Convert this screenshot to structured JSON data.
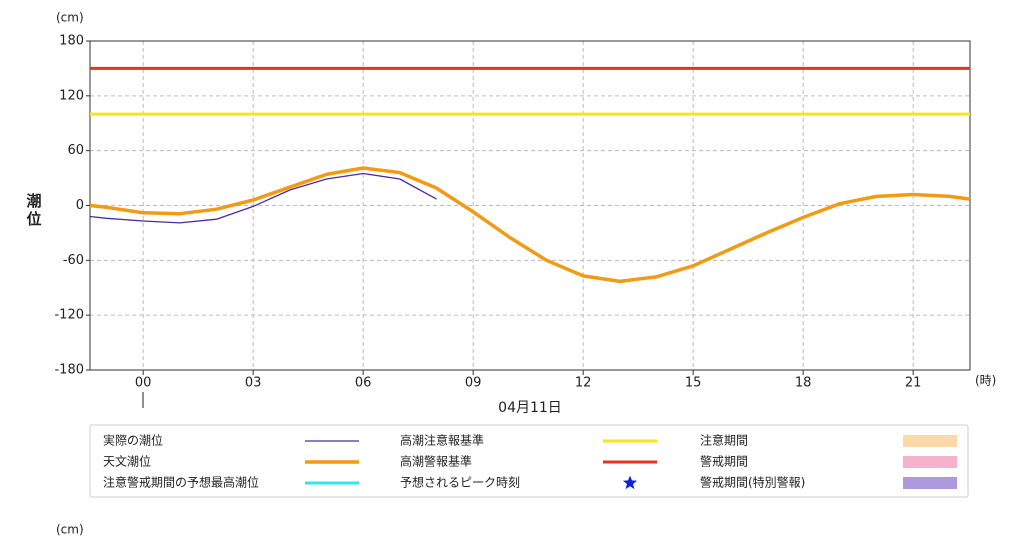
{
  "chart_data": {
    "type": "line",
    "y_unit": "(cm)",
    "ylabel": "潮位",
    "x_unit": "(時)",
    "xlabel": "04月11日",
    "xlim": [
      -1.45,
      22.55
    ],
    "ylim": [
      -180,
      180
    ],
    "xticks": [
      {
        "value": 0,
        "label": "00"
      },
      {
        "value": 3,
        "label": "03"
      },
      {
        "value": 6,
        "label": "06"
      },
      {
        "value": 9,
        "label": "09"
      },
      12,
      15,
      18,
      21
    ],
    "yticks": [
      -180,
      -120,
      -60,
      0,
      60,
      120,
      180
    ],
    "grid": true,
    "x": [
      -1.45,
      -1,
      0,
      1,
      2,
      3,
      4,
      5,
      6,
      7,
      8,
      9,
      10,
      11,
      12,
      13,
      14,
      15,
      16,
      17,
      18,
      19,
      20,
      21,
      22,
      22.55
    ],
    "series": [
      {
        "name": "実際の潮位",
        "color": "#4b2aa8",
        "width": 1.3,
        "values": [
          -12,
          -14,
          -17,
          -19,
          -15,
          -1,
          17,
          29,
          35,
          29,
          7,
          null,
          null,
          null,
          null,
          null,
          null,
          null,
          null,
          null,
          null,
          null,
          null,
          null,
          null,
          null
        ]
      },
      {
        "name": "天文潮位",
        "color": "#f29a16",
        "width": 3.5,
        "values": [
          0,
          -2,
          -8,
          -9,
          -4,
          6,
          20,
          34,
          41,
          36,
          19,
          -7,
          -35,
          -60,
          -77,
          -83,
          -78,
          -66,
          -48,
          -30,
          -13,
          2,
          10,
          12,
          10,
          7
        ]
      }
    ],
    "reference_lines": [
      {
        "name": "高潮注意報基準",
        "color": "#f5e61a",
        "value": 100
      },
      {
        "name": "高潮警報基準",
        "color": "#e8321e",
        "value": 150
      }
    ],
    "legend_extra": [
      {
        "name": "注意警戒期間の予想最高潮位",
        "color": "#30e6f0",
        "symbol": "line"
      },
      {
        "name": "予想されるピーク時刻",
        "color": "#1020d8",
        "symbol": "star"
      },
      {
        "name": "注意期間",
        "color": "#fdd9a8",
        "symbol": "patch"
      },
      {
        "name": "警戒期間",
        "color": "#f6b2cc",
        "symbol": "patch"
      },
      {
        "name": "警戒期間(特別警報)",
        "color": "#ae98de",
        "symbol": "patch"
      }
    ],
    "next_chart_unit": "(cm)"
  }
}
